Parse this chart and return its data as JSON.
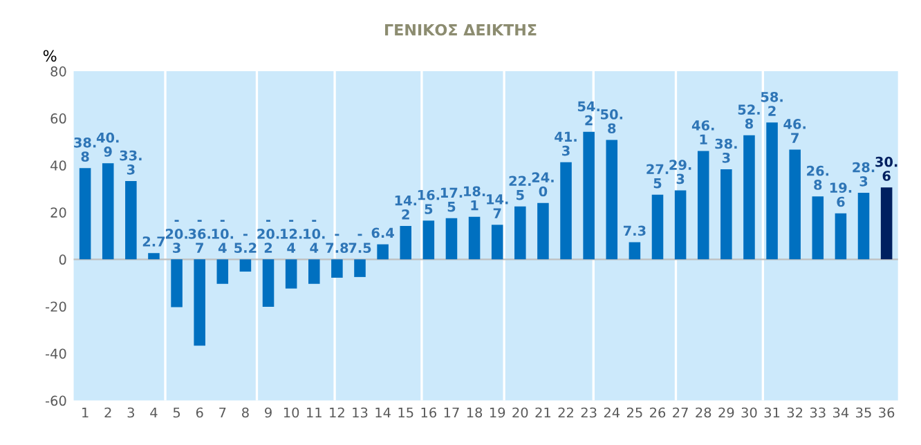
{
  "chart_data": {
    "type": "bar",
    "title": "ΓΕΝΙΚΟΣ ΔΕΙΚΤΗΣ",
    "ylabel": "%",
    "x": [
      1,
      2,
      3,
      4,
      5,
      6,
      7,
      8,
      9,
      10,
      11,
      12,
      13,
      14,
      15,
      16,
      17,
      18,
      19,
      20,
      21,
      22,
      23,
      24,
      25,
      26,
      27,
      28,
      29,
      30,
      31,
      32,
      33,
      34,
      35,
      36
    ],
    "values": [
      38.8,
      40.9,
      33.3,
      2.7,
      -20.3,
      -36.7,
      -10.4,
      -5.2,
      -20.2,
      -12.4,
      -10.4,
      -7.8,
      -7.5,
      6.4,
      14.2,
      16.5,
      17.5,
      18.1,
      14.7,
      22.5,
      24.0,
      41.3,
      54.2,
      50.8,
      7.3,
      27.5,
      29.3,
      46.1,
      38.3,
      52.8,
      58.2,
      46.7,
      26.8,
      19.6,
      28.3,
      30.6
    ],
    "colors": [
      "#0070c0",
      "#0070c0",
      "#0070c0",
      "#0070c0",
      "#0070c0",
      "#0070c0",
      "#0070c0",
      "#0070c0",
      "#0070c0",
      "#0070c0",
      "#0070c0",
      "#0070c0",
      "#0070c0",
      "#0070c0",
      "#0070c0",
      "#0070c0",
      "#0070c0",
      "#0070c0",
      "#0070c0",
      "#0070c0",
      "#0070c0",
      "#0070c0",
      "#0070c0",
      "#0070c0",
      "#0070c0",
      "#0070c0",
      "#0070c0",
      "#0070c0",
      "#0070c0",
      "#0070c0",
      "#0070c0",
      "#0070c0",
      "#0070c0",
      "#0070c0",
      "#0070c0",
      "#002060"
    ],
    "value_labels": [
      "38.8",
      "40.9",
      "33.3",
      "2.7",
      "-20.3",
      "-36.7",
      "-10.4",
      "-5.2",
      "-20.2",
      "-12.4",
      "-10.4",
      "-7.8",
      "-7.5",
      "6.4",
      "14.2",
      "16.5",
      "17.5",
      "18.1",
      "14.7",
      "22.5",
      "24.0",
      "41.3",
      "54.2",
      "50.8",
      "7.3",
      "27.5",
      "29.3",
      "46.1",
      "38.3",
      "52.8",
      "58.2",
      "46.7",
      "26.8",
      "19.6",
      "28.3",
      "30.6"
    ],
    "xlim": [
      0.5,
      36.5
    ],
    "xticks": [
      1,
      2,
      3,
      4,
      5,
      6,
      7,
      8,
      9,
      10,
      11,
      12,
      13,
      14,
      15,
      16,
      17,
      18,
      19,
      20,
      21,
      22,
      23,
      24,
      25,
      26,
      27,
      28,
      29,
      30,
      31,
      32,
      33,
      34,
      35,
      36
    ],
    "ylim": [
      -60,
      80
    ],
    "yticks": [
      -60,
      -40,
      -20,
      0,
      20,
      40,
      60,
      80
    ],
    "ref_lines": [
      {
        "axis": "x",
        "value": 4.5,
        "color": "#ffffff"
      },
      {
        "axis": "x",
        "value": 8.5,
        "color": "#ffffff"
      },
      {
        "axis": "x",
        "value": 11.9,
        "color": "#ffffff"
      },
      {
        "axis": "x",
        "value": 15.7,
        "color": "#ffffff"
      },
      {
        "axis": "x",
        "value": 19.3,
        "color": "#ffffff"
      },
      {
        "axis": "x",
        "value": 23.2,
        "color": "#ffffff"
      },
      {
        "axis": "x",
        "value": 26.8,
        "color": "#ffffff"
      },
      {
        "axis": "x",
        "value": 30.6,
        "color": "#ffffff"
      }
    ],
    "grid": false
  }
}
